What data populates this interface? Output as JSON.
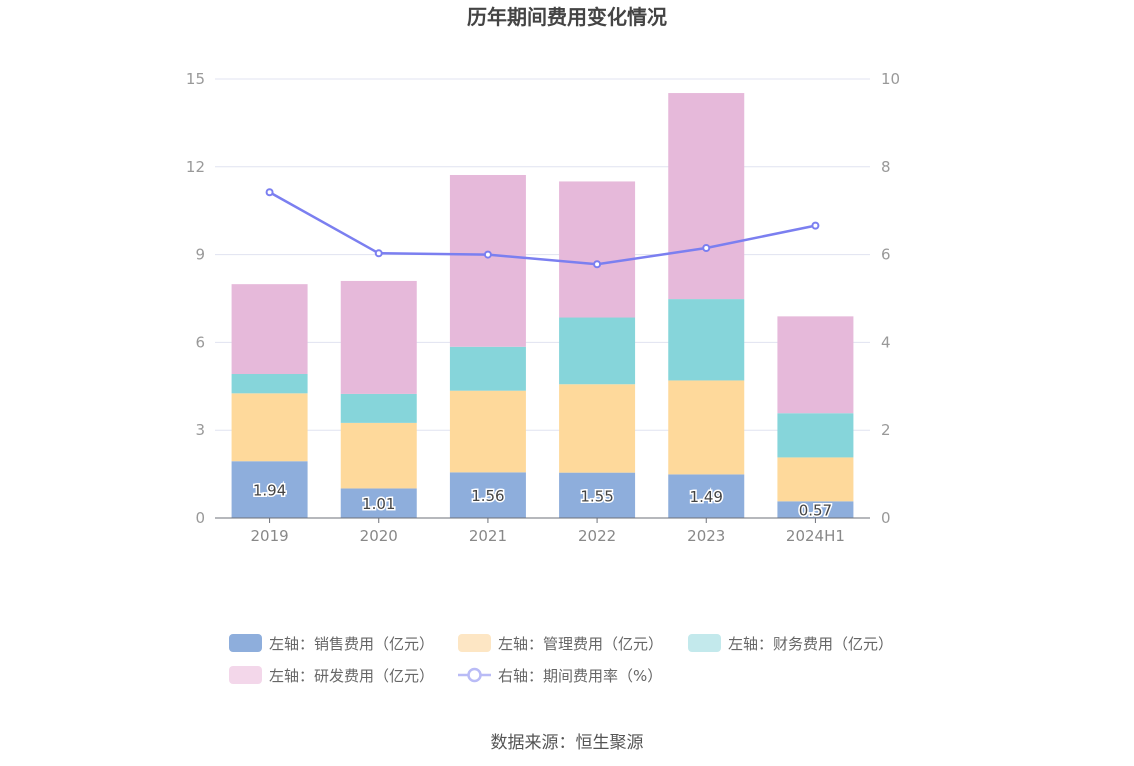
{
  "chart_data": {
    "type": "bar",
    "title": "历年期间费用变化情况",
    "categories": [
      "2019",
      "2020",
      "2021",
      "2022",
      "2023",
      "2024H1"
    ],
    "stacked": true,
    "y_left": {
      "ylim": [
        0,
        15
      ],
      "ticks": [
        "0",
        "3",
        "6",
        "9",
        "12",
        "15"
      ]
    },
    "y_right": {
      "ylim": [
        0,
        10
      ],
      "ticks": [
        "0",
        "2",
        "4",
        "6",
        "8",
        "10"
      ]
    },
    "grid": true,
    "legend_position": "bottom",
    "series": [
      {
        "name": "左轴：销售费用（亿元）",
        "axis": "left",
        "type": "bar",
        "color": "#8eaedc",
        "values": [
          1.94,
          1.01,
          1.56,
          1.55,
          1.49,
          0.57
        ],
        "labels": [
          "1.94",
          "1.01",
          "1.56",
          "1.55",
          "1.49",
          "0.57"
        ]
      },
      {
        "name": "左轴：管理费用（亿元）",
        "axis": "left",
        "type": "bar",
        "color": "#fed99b",
        "values": [
          2.32,
          2.24,
          2.79,
          3.02,
          3.21,
          1.5
        ]
      },
      {
        "name": "左轴：财务费用（亿元）",
        "axis": "left",
        "type": "bar",
        "color": "#86d5da",
        "values": [
          0.66,
          0.99,
          1.5,
          2.28,
          2.78,
          1.51
        ]
      },
      {
        "name": "左轴：研发费用（亿元）",
        "axis": "left",
        "type": "bar",
        "color": "#e6b9da",
        "values": [
          3.07,
          3.86,
          5.87,
          4.65,
          7.04,
          3.31
        ]
      },
      {
        "name": "右轴：期间费用率（%）",
        "axis": "right",
        "type": "line",
        "color": "#7b7ff0",
        "values": [
          7.42,
          6.03,
          6.0,
          5.78,
          6.15,
          6.66
        ]
      }
    ]
  },
  "legend_icon_colors": {
    "销售费用": "#8eaedc",
    "管理费用": "#fde6c4",
    "财务费用": "#c3e9ec",
    "研发费用": "#f3d7ea",
    "期间费用率": "#b9bbf6"
  },
  "source": "数据来源：恒生聚源"
}
